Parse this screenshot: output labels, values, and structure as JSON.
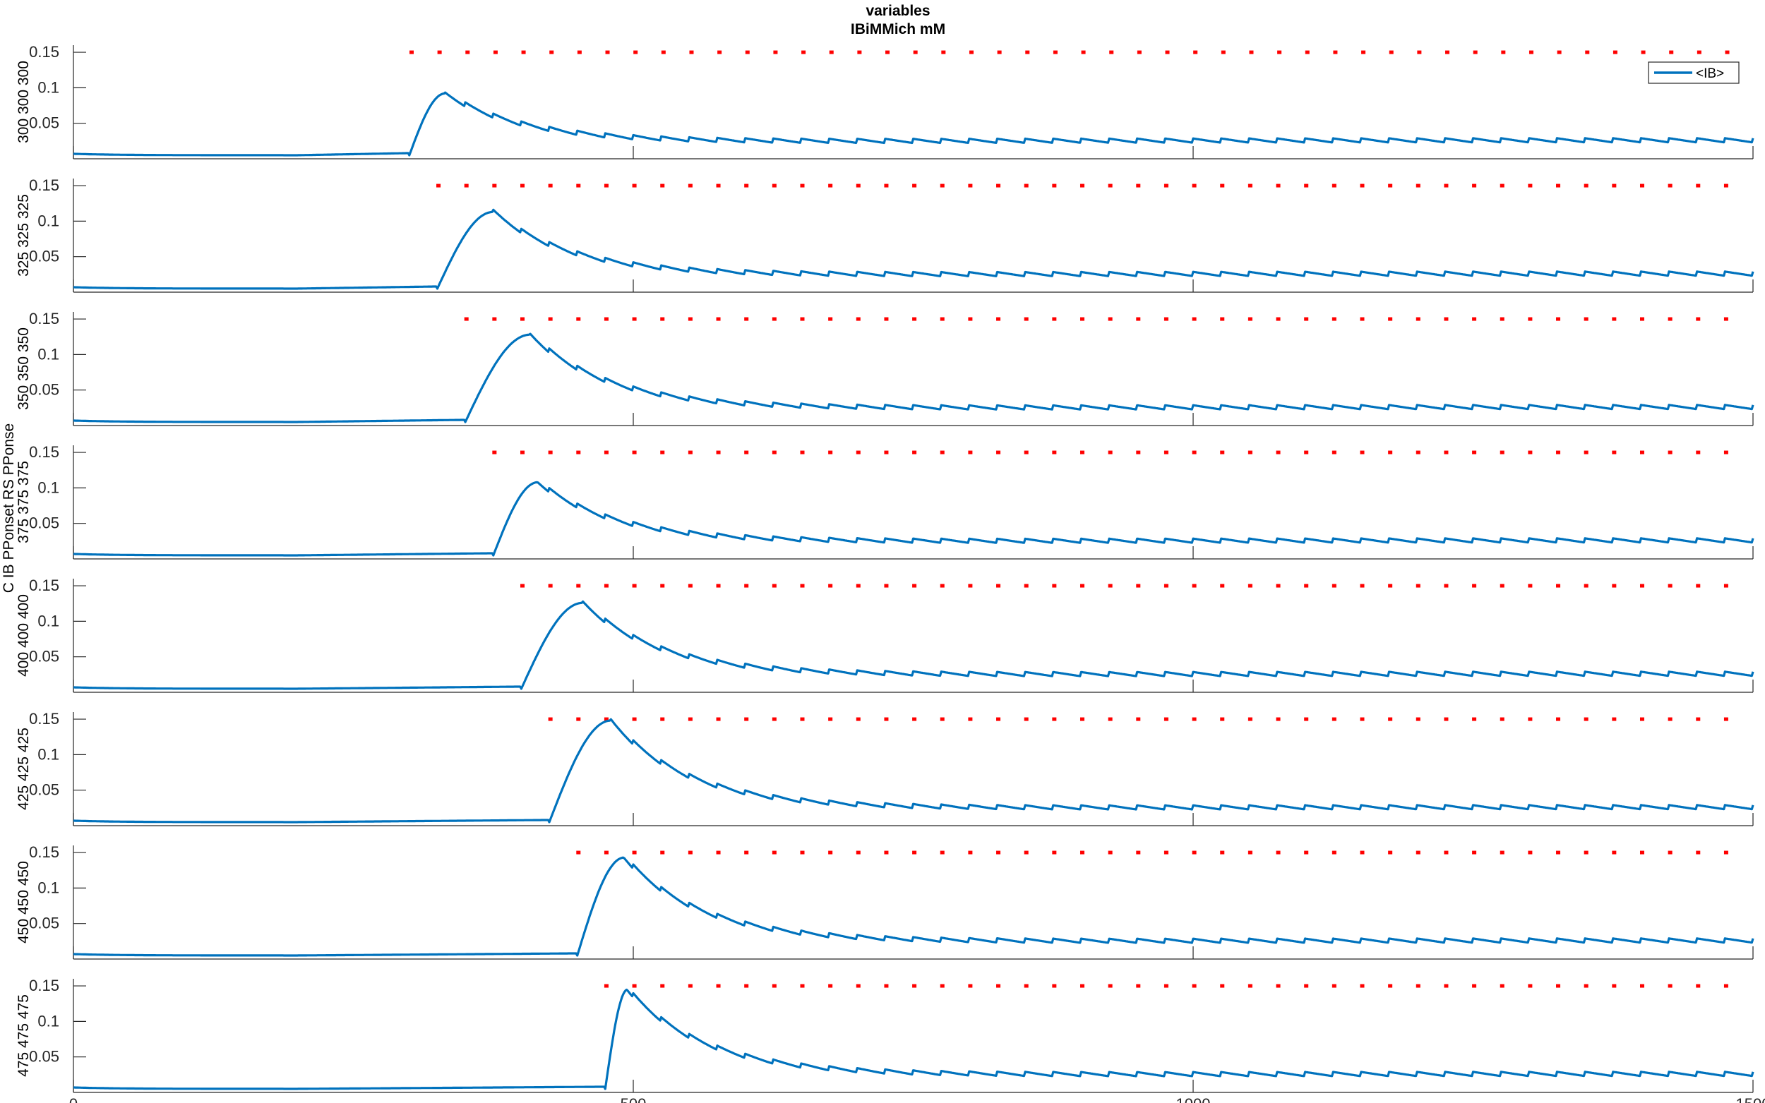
{
  "chart_data": {
    "type": "line",
    "title": "variables",
    "subtitle": "IBiMMich mM",
    "ylabel_main": "C IB PPonset RS PPonse",
    "legend": {
      "entries": [
        "<IB>"
      ],
      "placement": "top-right"
    },
    "xlim": [
      0,
      1500
    ],
    "xticks": [
      0,
      500,
      1000,
      1500
    ],
    "ylim": [
      0,
      0.16
    ],
    "yticks": [
      0.05,
      0.1,
      0.15
    ],
    "ytick_labels": [
      "0.05",
      "0.1",
      "0.15"
    ],
    "series_color": "#0072BD",
    "marker_color": "#FF0000",
    "marker_y": 0.15,
    "panels": [
      {
        "label": "300 300 300",
        "onset": 300,
        "peak_x": 332,
        "peak_y": 0.092,
        "dot_start": 302,
        "dot_end": 1500
      },
      {
        "label": "325 325 325",
        "onset": 325,
        "peak_x": 375,
        "peak_y": 0.113,
        "dot_start": 326,
        "dot_end": 1500
      },
      {
        "label": "350 350 350",
        "onset": 350,
        "peak_x": 408,
        "peak_y": 0.128,
        "dot_start": 351,
        "dot_end": 1500
      },
      {
        "label": "375 375 375",
        "onset": 375,
        "peak_x": 415,
        "peak_y": 0.108,
        "dot_start": 376,
        "dot_end": 1500
      },
      {
        "label": "400 400 400",
        "onset": 400,
        "peak_x": 455,
        "peak_y": 0.126,
        "dot_start": 401,
        "dot_end": 1500
      },
      {
        "label": "425 425 425",
        "onset": 425,
        "peak_x": 480,
        "peak_y": 0.148,
        "dot_start": 426,
        "dot_end": 1500
      },
      {
        "label": "450 450 450",
        "onset": 450,
        "peak_x": 492,
        "peak_y": 0.143,
        "dot_start": 451,
        "dot_end": 1500
      },
      {
        "label": "475 475 475",
        "onset": 475,
        "peak_x": 495,
        "peak_y": 0.145,
        "dot_start": 476,
        "dot_end": 1500
      }
    ],
    "baseline": 0.005,
    "tail_level": 0.022
  }
}
